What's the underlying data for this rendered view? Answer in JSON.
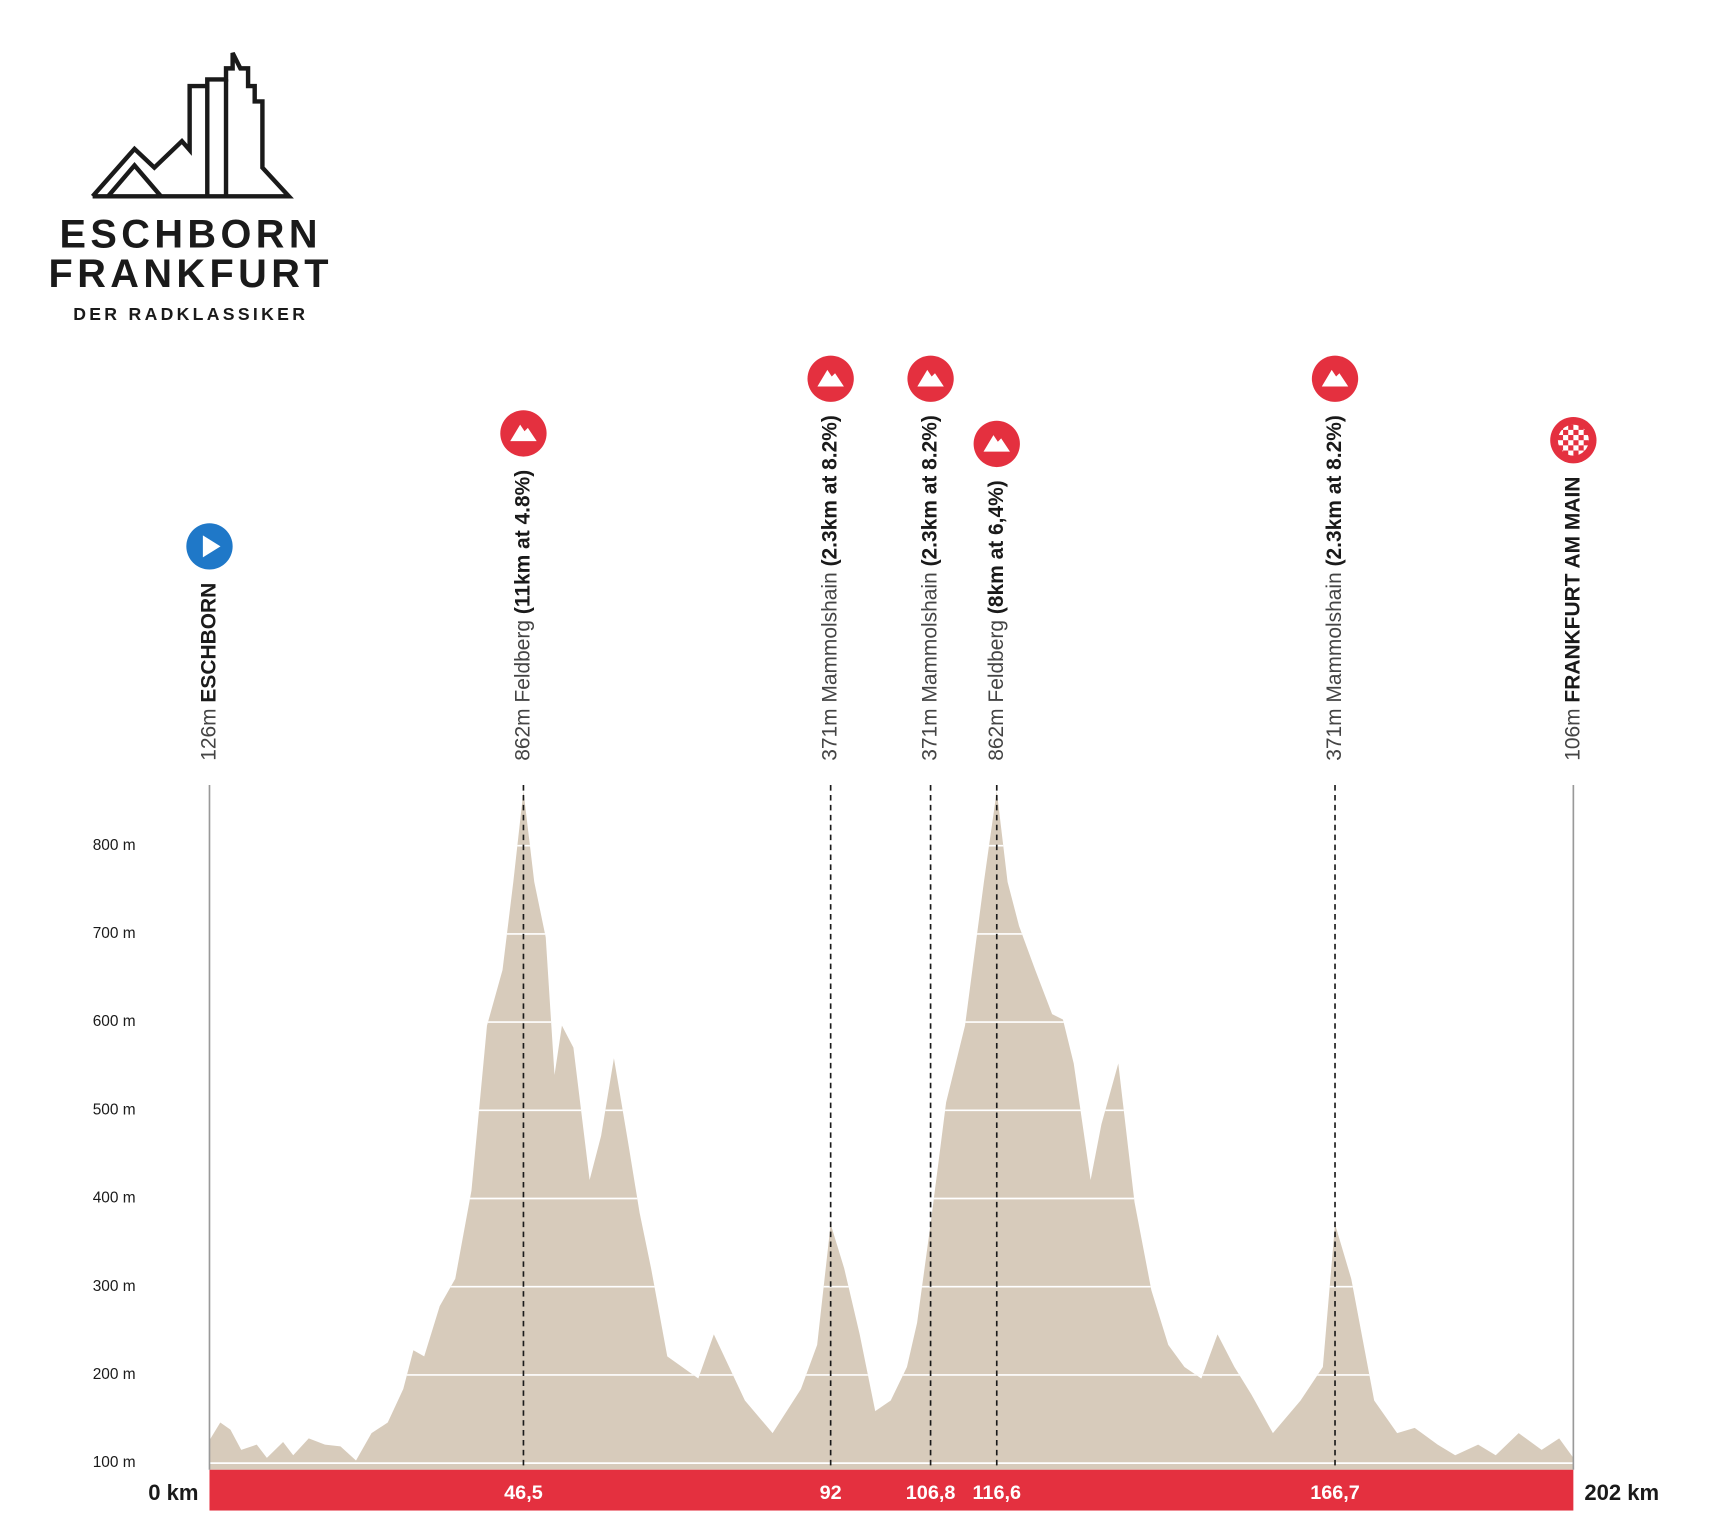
{
  "logo": {
    "line1": "ESCHBORN",
    "line2": "FRANKFURT",
    "line3": "DER RADKLASSIKER"
  },
  "chart_data": {
    "type": "area",
    "color": "#d7cbbb",
    "x": [
      0,
      1.6,
      3.1,
      4.7,
      7.0,
      8.5,
      10.9,
      12.4,
      14.7,
      17.1,
      19.4,
      21.7,
      24.0,
      26.4,
      28.7,
      30.2,
      31.8,
      34.1,
      36.4,
      38.8,
      41.1,
      43.4,
      45.0,
      46.5,
      48.1,
      49.8,
      51.1,
      52.2,
      53.9,
      56.3,
      58.0,
      59.9,
      62.1,
      63.7,
      65.4,
      67.8,
      72.4,
      74.7,
      79.3,
      83.4,
      87.6,
      90.0,
      92,
      94.0,
      96.3,
      98.6,
      100.9,
      103.3,
      104.8,
      106.8,
      109.1,
      111.9,
      114.7,
      116.6,
      118.2,
      119.9,
      122.3,
      124.8,
      126.4,
      128.0,
      130.5,
      132.1,
      134.6,
      137.0,
      139.5,
      142.0,
      144.4,
      146.9,
      149.3,
      151.8,
      154.3,
      157.5,
      161.6,
      164.9,
      166.7,
      169.1,
      172.5,
      175.9,
      178.5,
      181.9,
      184.5,
      187.9,
      190.5,
      193.9,
      197.3,
      199.9,
      202
    ],
    "values": [
      126,
      146,
      138,
      115,
      121,
      106,
      124,
      109,
      128,
      121,
      119,
      103,
      134,
      146,
      184,
      228,
      221,
      278,
      309,
      409,
      596,
      659,
      759,
      862,
      759,
      696,
      540,
      596,
      571,
      421,
      471,
      559,
      459,
      384,
      321,
      221,
      196,
      246,
      171,
      134,
      184,
      234,
      371,
      321,
      246,
      159,
      171,
      209,
      259,
      371,
      509,
      596,
      759,
      862,
      759,
      709,
      659,
      609,
      603,
      553,
      421,
      484,
      553,
      396,
      296,
      234,
      209,
      196,
      246,
      209,
      178,
      134,
      171,
      209,
      371,
      309,
      171,
      134,
      140,
      121,
      109,
      121,
      109,
      134,
      115,
      128,
      106
    ],
    "xlim": [
      0,
      202
    ],
    "ylim": [
      92.5,
      870
    ],
    "xticks": [
      {
        "value": 0,
        "label": "0 km"
      },
      {
        "value": 202,
        "label": "202 km"
      }
    ],
    "yticks": [
      {
        "value": 100,
        "label": "100 m"
      },
      {
        "value": 200,
        "label": "200 m"
      },
      {
        "value": 300,
        "label": "300 m"
      },
      {
        "value": 400,
        "label": "400 m"
      },
      {
        "value": 500,
        "label": "500 m"
      },
      {
        "value": 600,
        "label": "600 m"
      },
      {
        "value": 700,
        "label": "700 m"
      },
      {
        "value": 800,
        "label": "800 m"
      }
    ],
    "grid": true,
    "markers": [
      {
        "km": 0,
        "kind": "start",
        "elevation": "126m",
        "name": "ESCHBORN"
      },
      {
        "km": 46.5,
        "kind": "climb",
        "km_label": "46,5",
        "elevation": "862m",
        "name": "Feldberg",
        "detail": "(11km at 4.8%)"
      },
      {
        "km": 92,
        "kind": "climb",
        "km_label": "92",
        "elevation": "371m",
        "name": "Mammolshain",
        "detail": "(2.3km at 8.2%)"
      },
      {
        "km": 106.8,
        "kind": "climb",
        "km_label": "106,8",
        "elevation": "371m",
        "name": "Mammolshain",
        "detail": "(2.3km at 8.2%)"
      },
      {
        "km": 116.6,
        "kind": "climb",
        "km_label": "116,6",
        "elevation": "862m",
        "name": "Feldberg",
        "detail": "(8km at 6,4%)"
      },
      {
        "km": 166.7,
        "kind": "climb",
        "km_label": "166,7",
        "elevation": "371m",
        "name": "Mammolshain",
        "detail": "(2.3km at 8.2%)"
      },
      {
        "km": 202,
        "kind": "finish",
        "elevation": "106m",
        "name": "FRANKFURT AM MAIN"
      }
    ]
  }
}
